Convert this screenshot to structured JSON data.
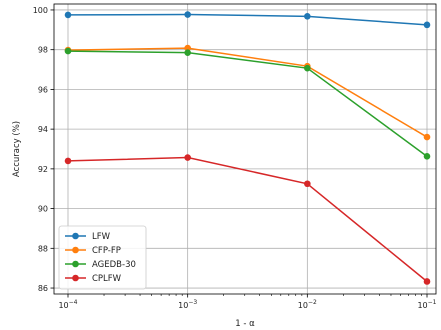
{
  "chart_data": {
    "type": "line",
    "categories": [
      "10^{-4}",
      "10^{-3}",
      "10^{-2}",
      "10^{-1}"
    ],
    "tick_labels": [
      {
        "base": "10",
        "exp": "−4"
      },
      {
        "base": "10",
        "exp": "−3"
      },
      {
        "base": "10",
        "exp": "−2"
      },
      {
        "base": "10",
        "exp": "−1"
      }
    ],
    "x_scale": "log",
    "series": [
      {
        "name": "LFW",
        "color": "#1f77b4",
        "values": [
          99.75,
          99.77,
          99.68,
          99.25
        ]
      },
      {
        "name": "CFP-FP",
        "color": "#ff7f0e",
        "values": [
          97.98,
          98.08,
          97.17,
          93.6
        ]
      },
      {
        "name": "AGEDB-30",
        "color": "#2ca02c",
        "values": [
          97.93,
          97.85,
          97.07,
          92.63
        ]
      },
      {
        "name": "CPLFW",
        "color": "#d62728",
        "values": [
          92.4,
          92.57,
          91.25,
          86.33
        ]
      }
    ],
    "xlabel": "1 - α",
    "ylabel": "Accuracy (%)",
    "ylim": [
      85.7,
      100.3
    ],
    "yticks": [
      86,
      88,
      90,
      92,
      94,
      96,
      98,
      100
    ],
    "grid": true,
    "legend_position": "lower-left"
  }
}
